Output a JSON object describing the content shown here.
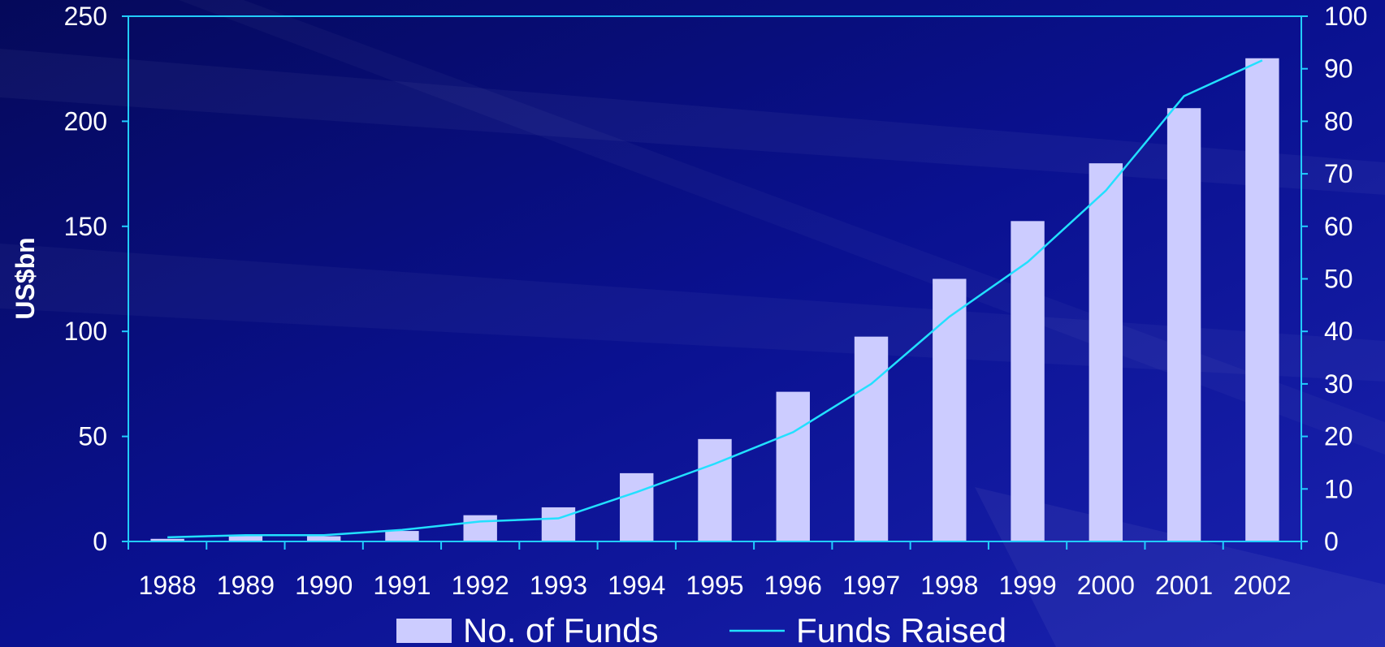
{
  "chart_data": {
    "type": "bar",
    "categories": [
      "1988",
      "1989",
      "1990",
      "1991",
      "1992",
      "1993",
      "1994",
      "1995",
      "1996",
      "1997",
      "1998",
      "1999",
      "2000",
      "2001",
      "2002"
    ],
    "series": [
      {
        "name": "No. of Funds",
        "type": "bar",
        "axis": "right",
        "values": [
          0.5,
          1,
          1,
          2,
          5,
          6.5,
          13,
          19.5,
          28.5,
          39,
          50,
          61,
          72,
          82.5,
          92
        ]
      },
      {
        "name": "Funds Raised",
        "type": "line",
        "axis": "left",
        "values": [
          2,
          3,
          3,
          5.5,
          9.5,
          11,
          23.5,
          37,
          52,
          75,
          107,
          133,
          167,
          212,
          229
        ]
      }
    ],
    "ylabel": "US$bn",
    "xlabel": "",
    "title": "",
    "ylim": [
      0,
      250
    ],
    "y2lim": [
      0,
      100
    ],
    "yticks": [
      "0",
      "50",
      "100",
      "150",
      "200",
      "250"
    ],
    "y2ticks": [
      "0",
      "10",
      "20",
      "30",
      "40",
      "50",
      "60",
      "70",
      "80",
      "90",
      "100"
    ],
    "grid": false,
    "legend_position": "bottom",
    "colors": {
      "background": "#0a0f7a",
      "bars": "#ccccff",
      "line": "#22e0ff",
      "axes": "#22ccff",
      "text": "#ffffff"
    }
  }
}
